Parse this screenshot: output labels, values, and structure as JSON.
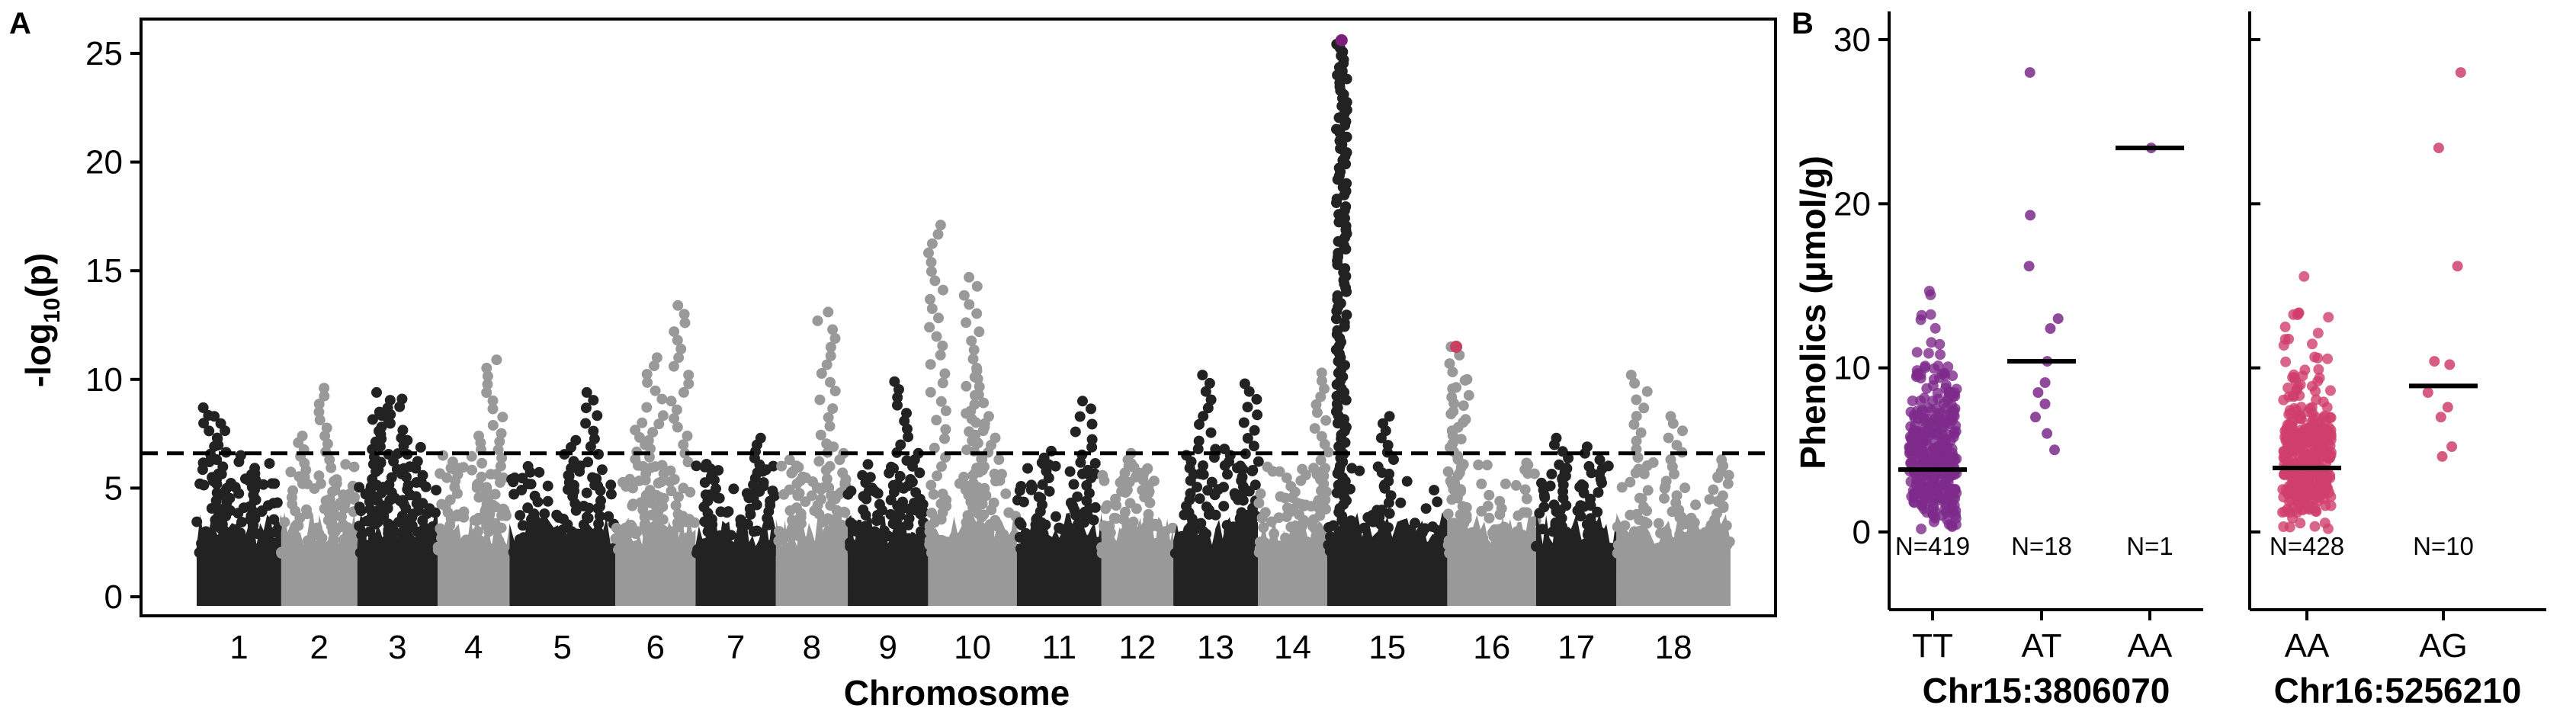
{
  "panels": {
    "a_label": "A",
    "b_label": "B"
  },
  "chart_data": [
    {
      "type": "scatter",
      "subtype": "manhattan",
      "panel": "A",
      "title": "",
      "xlabel": "Chromosome",
      "ylabel_main": "-log",
      "ylabel_sub": "10",
      "ylabel_tail": "(p)",
      "ylim": [
        0,
        26.5
      ],
      "yticks": [
        0,
        5,
        10,
        15,
        20,
        25
      ],
      "grid": false,
      "significance_threshold": 6.6,
      "colors": {
        "odd": "#222222",
        "even": "#999999",
        "threshold": "#000000"
      },
      "chromosomes": [
        {
          "label": "1",
          "color": "odd",
          "peaks": [
            [
              0.15,
              8.7
            ],
            [
              0.3,
              8.3
            ],
            [
              0.6,
              6.5
            ],
            [
              0.75,
              5.4
            ]
          ]
        },
        {
          "label": "2",
          "color": "even",
          "peaks": [
            [
              0.25,
              7.4
            ],
            [
              0.6,
              9.6
            ],
            [
              0.75,
              4.9
            ]
          ]
        },
        {
          "label": "3",
          "color": "odd",
          "peaks": [
            [
              0.2,
              8.5
            ],
            [
              0.35,
              9.4
            ],
            [
              0.5,
              9.1
            ],
            [
              0.7,
              7.2
            ]
          ]
        },
        {
          "label": "4",
          "color": "even",
          "peaks": [
            [
              0.2,
              6.5
            ],
            [
              0.6,
              7.4
            ],
            [
              0.8,
              10.9
            ]
          ]
        },
        {
          "label": "5",
          "color": "odd",
          "peaks": [
            [
              0.2,
              6.0
            ],
            [
              0.55,
              7.2
            ],
            [
              0.8,
              9.4
            ]
          ]
        },
        {
          "label": "6",
          "color": "even",
          "peaks": [
            [
              0.3,
              8.0
            ],
            [
              0.5,
              11.0
            ],
            [
              0.8,
              13.4
            ]
          ]
        },
        {
          "label": "7",
          "color": "odd",
          "peaks": [
            [
              0.2,
              6.1
            ],
            [
              0.8,
              7.3
            ]
          ]
        },
        {
          "label": "8",
          "color": "even",
          "peaks": [
            [
              0.3,
              6.3
            ],
            [
              0.7,
              13.1
            ],
            [
              0.85,
              6.9
            ]
          ]
        },
        {
          "label": "9",
          "color": "odd",
          "peaks": [
            [
              0.3,
              5.5
            ],
            [
              0.65,
              9.9
            ],
            [
              0.85,
              6.6
            ]
          ]
        },
        {
          "label": "10",
          "color": "even",
          "peaks": [
            [
              0.1,
              17.1
            ],
            [
              0.5,
              14.7
            ],
            [
              0.55,
              10.4
            ],
            [
              0.7,
              8.3
            ]
          ]
        },
        {
          "label": "11",
          "color": "odd",
          "peaks": [
            [
              0.3,
              6.7
            ],
            [
              0.8,
              9.0
            ]
          ]
        },
        {
          "label": "12",
          "color": "even",
          "peaks": [
            [
              0.3,
              6.6
            ],
            [
              0.6,
              5.9
            ]
          ]
        },
        {
          "label": "13",
          "color": "odd",
          "peaks": [
            [
              0.2,
              6.8
            ],
            [
              0.4,
              10.2
            ],
            [
              0.7,
              6.8
            ],
            [
              0.9,
              9.8
            ]
          ]
        },
        {
          "label": "14",
          "color": "even",
          "peaks": [
            [
              0.6,
              5.6
            ],
            [
              0.9,
              10.3
            ]
          ]
        },
        {
          "label": "15",
          "color": "odd",
          "peaks": [
            [
              0.12,
              25.6
            ],
            [
              0.5,
              8.3
            ]
          ]
        },
        {
          "label": "16",
          "color": "even",
          "peaks": [
            [
              0.1,
              11.5
            ],
            [
              0.15,
              10.0
            ]
          ]
        },
        {
          "label": "17",
          "color": "odd",
          "peaks": [
            [
              0.3,
              7.3
            ],
            [
              0.7,
              6.9
            ]
          ]
        },
        {
          "label": "18",
          "color": "even",
          "peaks": [
            [
              0.2,
              10.2
            ],
            [
              0.5,
              8.3
            ],
            [
              0.9,
              6.3
            ]
          ]
        }
      ],
      "highlighted_points": [
        {
          "chromosome": "15",
          "y": 25.6,
          "color": "#7a1f7d"
        },
        {
          "chromosome": "16",
          "y": 11.5,
          "color": "#c8405f"
        }
      ]
    },
    {
      "type": "scatter",
      "subtype": "jitter-with-median",
      "panel": "B",
      "ylabel": "Phenolics (μmol/g)",
      "ylim": [
        -3,
        31
      ],
      "yticks": [
        0,
        10,
        20,
        30
      ],
      "grid": false,
      "groups": [
        {
          "name": "Chr15:3806070",
          "color": "#7d2a8b",
          "categories": [
            "TT",
            "AT",
            "AA"
          ],
          "counts": [
            "N=419",
            "N=18",
            "N=1"
          ],
          "medians": [
            3.8,
            10.4,
            23.4
          ],
          "notable_values": [
            [
              28.0,
              19.3,
              16.2,
              13.0,
              12.4,
              10.4,
              9.1,
              8.5,
              7.8,
              7.0,
              6.0,
              5.0
            ],
            [
              23.4
            ]
          ]
        },
        {
          "name": "Chr16:5256210",
          "color": "#cf3f6b",
          "categories": [
            "AA",
            "AG"
          ],
          "counts": [
            "N=428",
            "N=10"
          ],
          "medians": [
            3.9,
            8.9
          ],
          "notable_values": [
            [
              28.0,
              23.4,
              16.2,
              10.4,
              10.2,
              8.5,
              7.6,
              7.0,
              5.2,
              4.6
            ]
          ]
        }
      ]
    }
  ]
}
